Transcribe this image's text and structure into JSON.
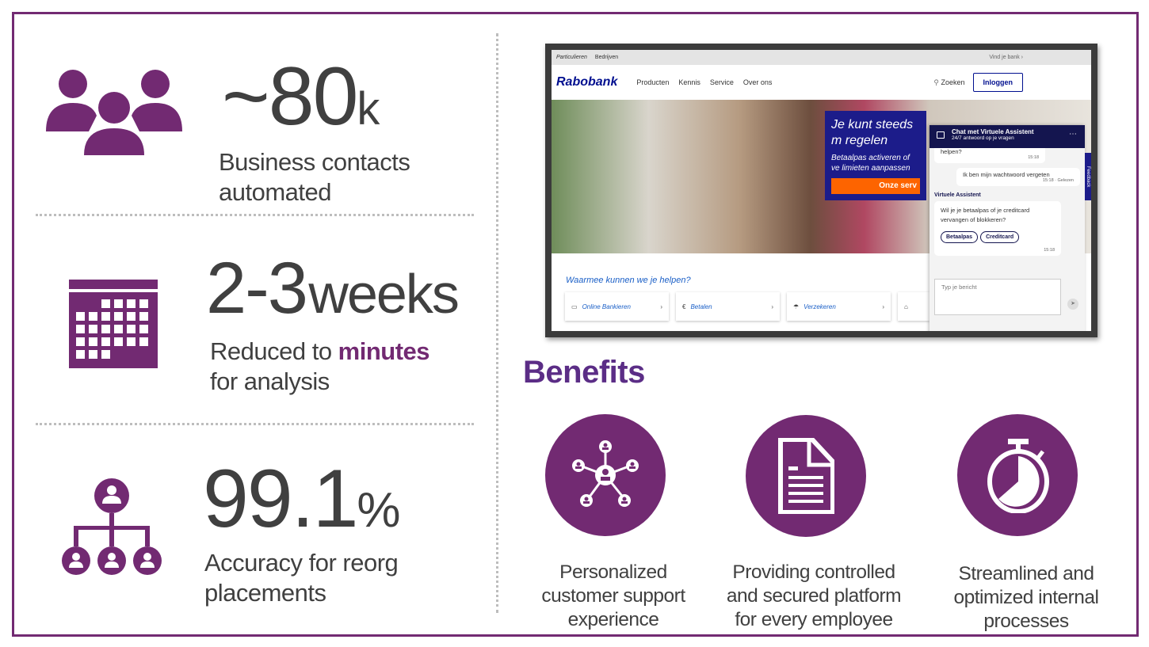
{
  "brand_color": "#722a72",
  "stats": [
    {
      "icon": "people-group-icon",
      "value": "~80",
      "unit": "k",
      "line1": "Business contacts",
      "line2": "automated"
    },
    {
      "icon": "calendar-icon",
      "value": "2-3",
      "unit": "weeks",
      "line1_pre": "Reduced to ",
      "line1_highlight": "minutes",
      "line2": "for analysis"
    },
    {
      "icon": "org-chart-icon",
      "value": "99.1",
      "unit": "%",
      "line1": "Accuracy for reorg",
      "line2": "placements"
    }
  ],
  "screenshot": {
    "topbar": {
      "tab1": "Particulieren",
      "tab2": "Bedrijven",
      "find_bank": "Vind je bank ›"
    },
    "nav": {
      "logo": "Rabobank",
      "items": [
        "Producten",
        "Kennis",
        "Service",
        "Over ons"
      ],
      "search": "Zoeken",
      "login": "Inloggen"
    },
    "promo": {
      "title": "Je kunt steeds m regelen",
      "subtitle": "Betaalpas activeren of ve limieten aanpassen",
      "button": "Onze serv"
    },
    "help_title": "Waarmee kunnen we je helpen?",
    "cards": [
      "Online Bankieren",
      "Betalen",
      "Verzekeren"
    ],
    "chat": {
      "title": "Chat met Virtuele Assistent",
      "subtitle": "24/7 antwoord op je vragen",
      "msg1": "helpen?",
      "msg1_time": "15:18",
      "msg2": "Ik ben mijn wachtwoord vergeten",
      "msg2_time": "15:18 · Gelezen",
      "assistant_label": "Virtuele Assistent",
      "msg3": "Wil je je betaalpas of je creditcard vervangen of blokkeren?",
      "options": [
        "Betaalpas",
        "Creditcard"
      ],
      "msg3_time": "15:18",
      "input_placeholder": "Typ je bericht",
      "feedback": "Feedback"
    }
  },
  "benefits": {
    "title": "Benefits",
    "items": [
      {
        "icon": "network-people-icon",
        "lines": [
          "Personalized",
          "customer support",
          "experience"
        ]
      },
      {
        "icon": "document-icon",
        "lines": [
          "Providing controlled",
          "and secured platform",
          "for every employee"
        ]
      },
      {
        "icon": "stopwatch-icon",
        "lines": [
          "Streamlined and",
          "optimized internal",
          "processes"
        ]
      }
    ]
  }
}
